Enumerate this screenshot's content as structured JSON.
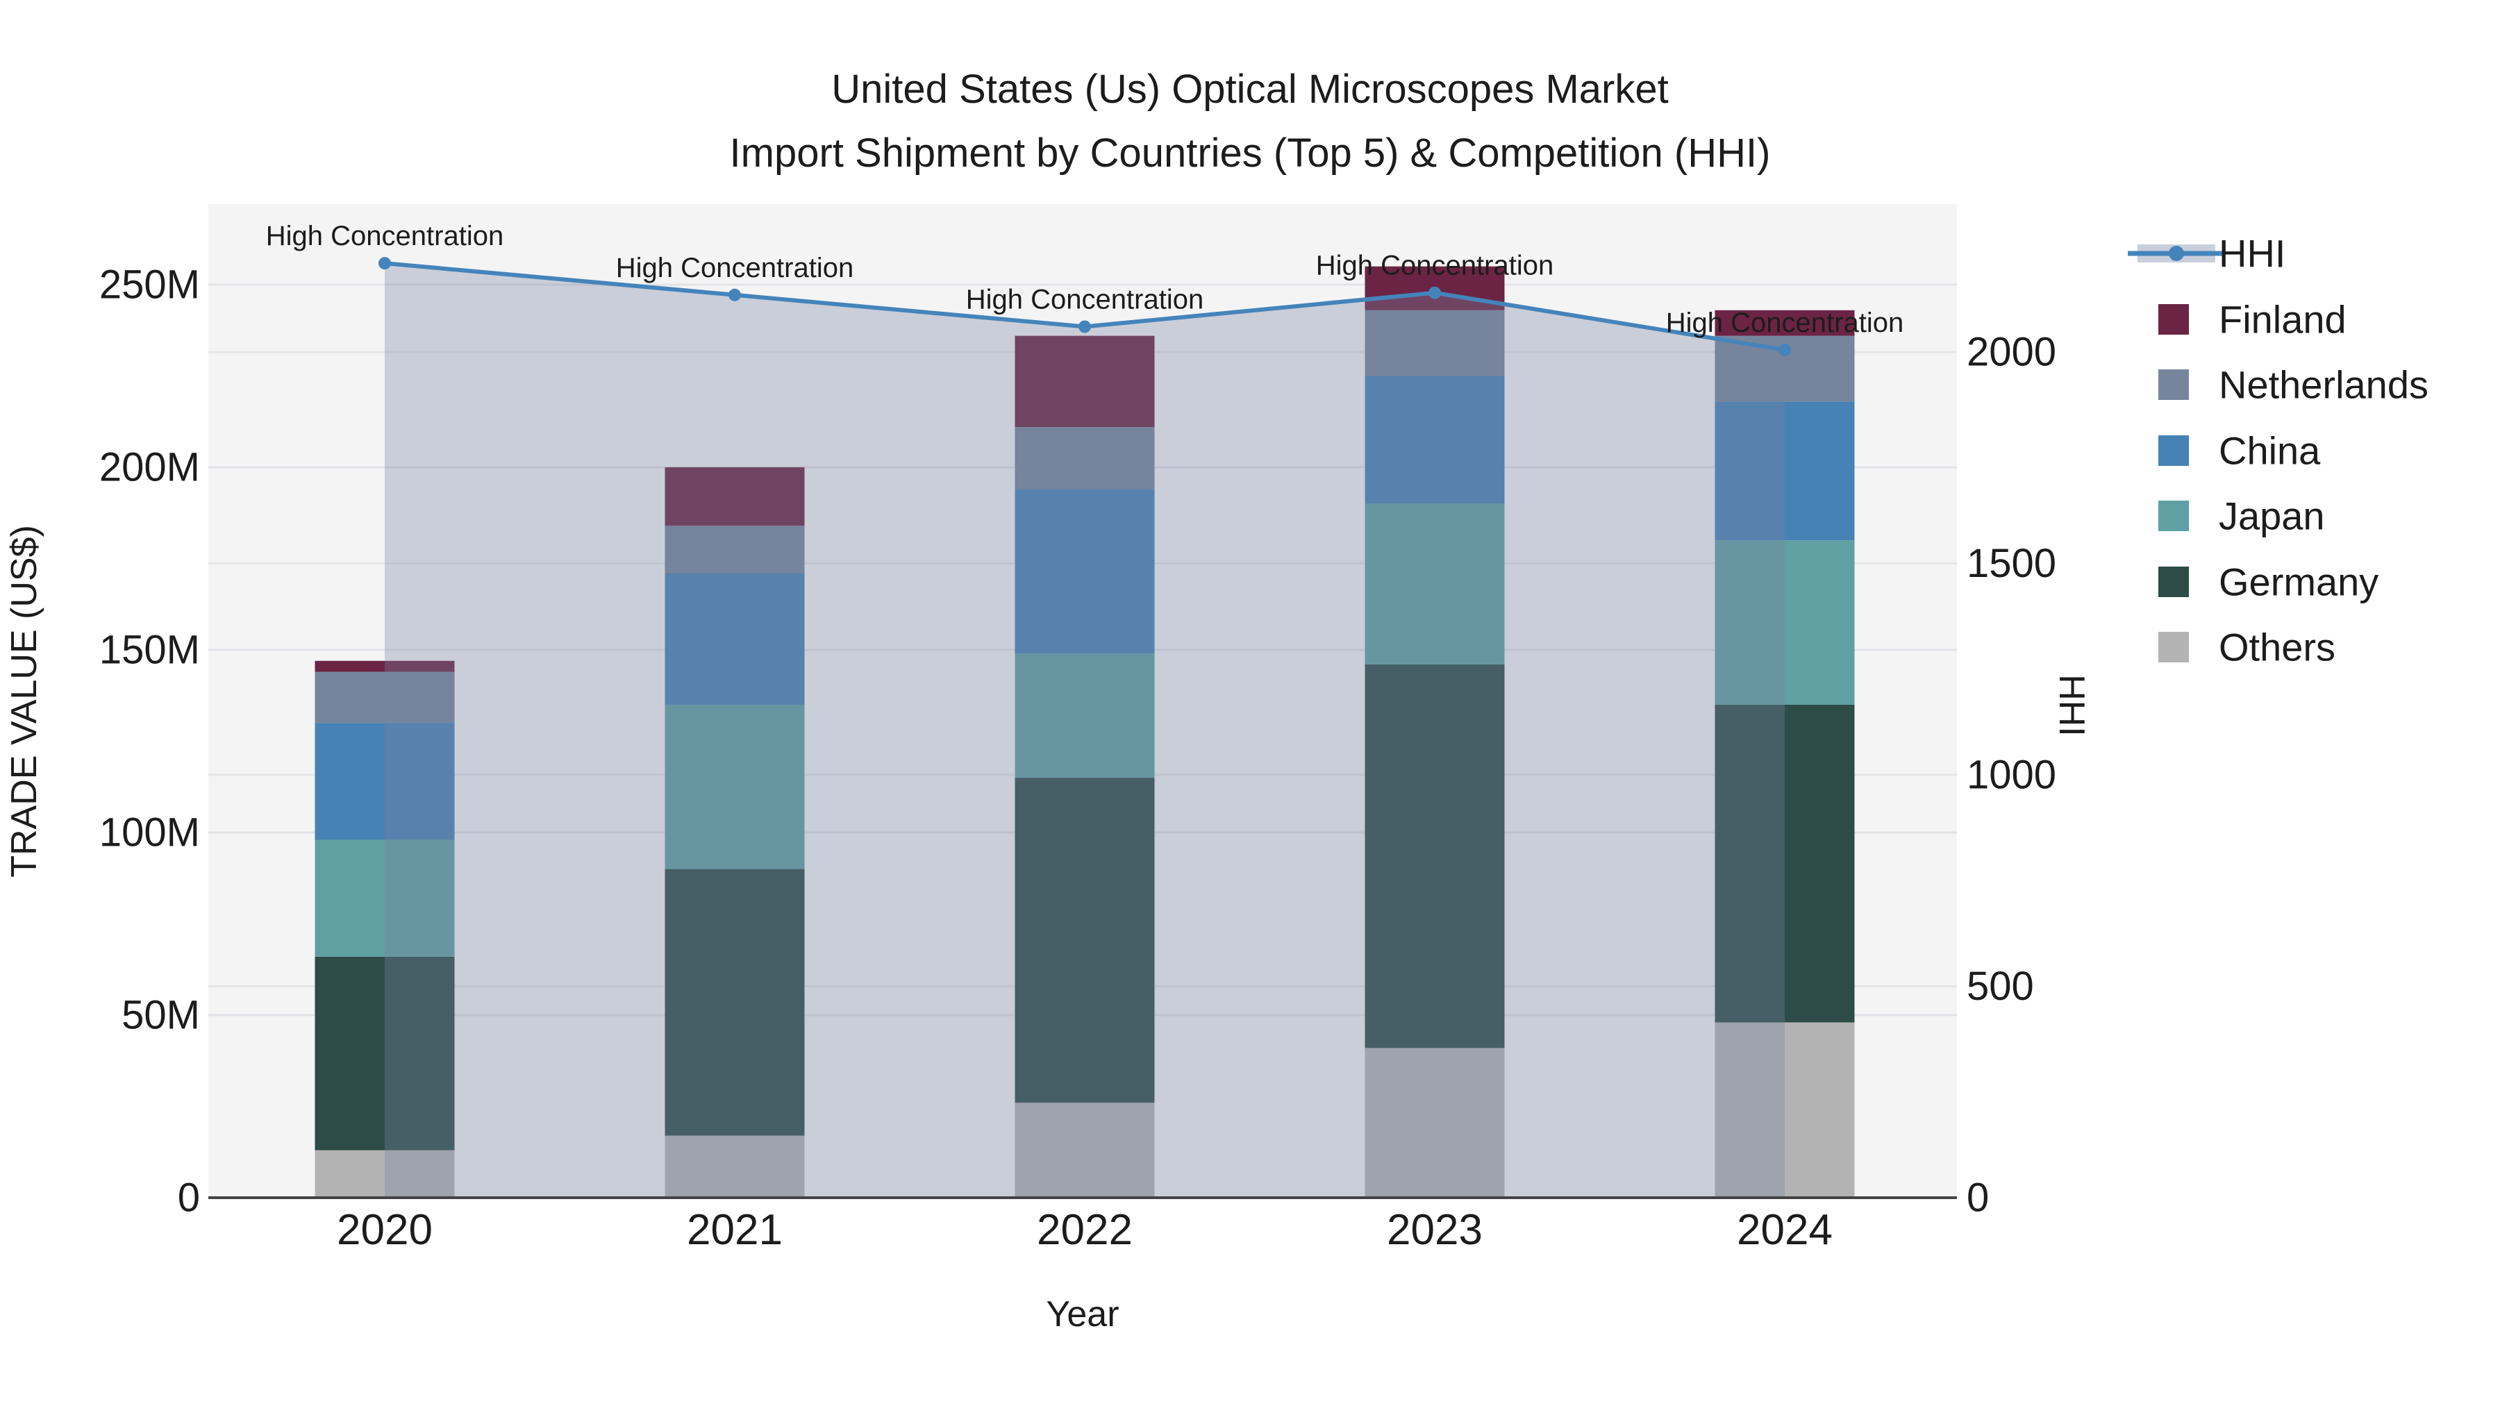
{
  "title": {
    "line1": "United States (Us) Optical Microscopes Market",
    "line2": "Import Shipment by Countries (Top 5) & Competition (HHI)"
  },
  "axes": {
    "x": {
      "label": "Year"
    },
    "y_left": {
      "label": "TRADE VALUE (US$)",
      "ticks": [
        {
          "value": 0,
          "label": "0"
        },
        {
          "value": 50,
          "label": "50M"
        },
        {
          "value": 100,
          "label": "100M"
        },
        {
          "value": 150,
          "label": "150M"
        },
        {
          "value": 200,
          "label": "200M"
        },
        {
          "value": 250,
          "label": "250M"
        }
      ]
    },
    "y_right": {
      "label": "HHI",
      "ticks": [
        {
          "value": 0,
          "label": "0"
        },
        {
          "value": 500,
          "label": "500"
        },
        {
          "value": 1000,
          "label": "1000"
        },
        {
          "value": 1500,
          "label": "1500"
        },
        {
          "value": 2000,
          "label": "2000"
        }
      ]
    }
  },
  "chart_data": {
    "type": "bar",
    "subtype": "stacked-bars-with-line-overlay",
    "categories": [
      "2020",
      "2021",
      "2022",
      "2023",
      "2024"
    ],
    "value_unit": "M US$",
    "series": [
      {
        "name": "Others",
        "color": "#b3b3b3",
        "values": [
          13,
          17,
          26,
          41,
          48
        ]
      },
      {
        "name": "Germany",
        "color": "#2d4b47",
        "values": [
          53,
          73,
          89,
          105,
          87
        ]
      },
      {
        "name": "Japan",
        "color": "#5fa0a2",
        "values": [
          32,
          45,
          34,
          44,
          45
        ]
      },
      {
        "name": "China",
        "color": "#4682b4",
        "values": [
          32,
          36,
          45,
          35,
          38
        ]
      },
      {
        "name": "Netherlands",
        "color": "#76859b",
        "values": [
          14,
          13,
          17,
          18,
          18
        ]
      },
      {
        "name": "Finland",
        "color": "#6b2444",
        "values": [
          3,
          16,
          25,
          12,
          7
        ]
      }
    ],
    "stack_totals": [
      147,
      200,
      236,
      255,
      243
    ],
    "line_series": {
      "name": "HHI",
      "axis": "right",
      "color": "#4484ba",
      "area_fill": "rgba(119,132,160,0.34)",
      "legend_band_color": "#c9cedb",
      "values": [
        2210,
        2135,
        2060,
        2140,
        2005
      ]
    },
    "annotations": [
      "High Concentration",
      "High Concentration",
      "High Concentration",
      "High Concentration",
      "High Concentration"
    ],
    "ylim_left": [
      0,
      272
    ],
    "ylim_right": [
      0,
      2350
    ],
    "grid": true,
    "legend": {
      "position": "right",
      "entries": [
        "HHI",
        "Finland",
        "Netherlands",
        "China",
        "Japan",
        "Germany",
        "Others"
      ]
    },
    "colors": {
      "plot_background": "#f4f4f5",
      "figure_background": "#ffffff",
      "gridline": "#e2e3e6",
      "axis_line": "#444444",
      "text": "#1c1c1c"
    }
  }
}
